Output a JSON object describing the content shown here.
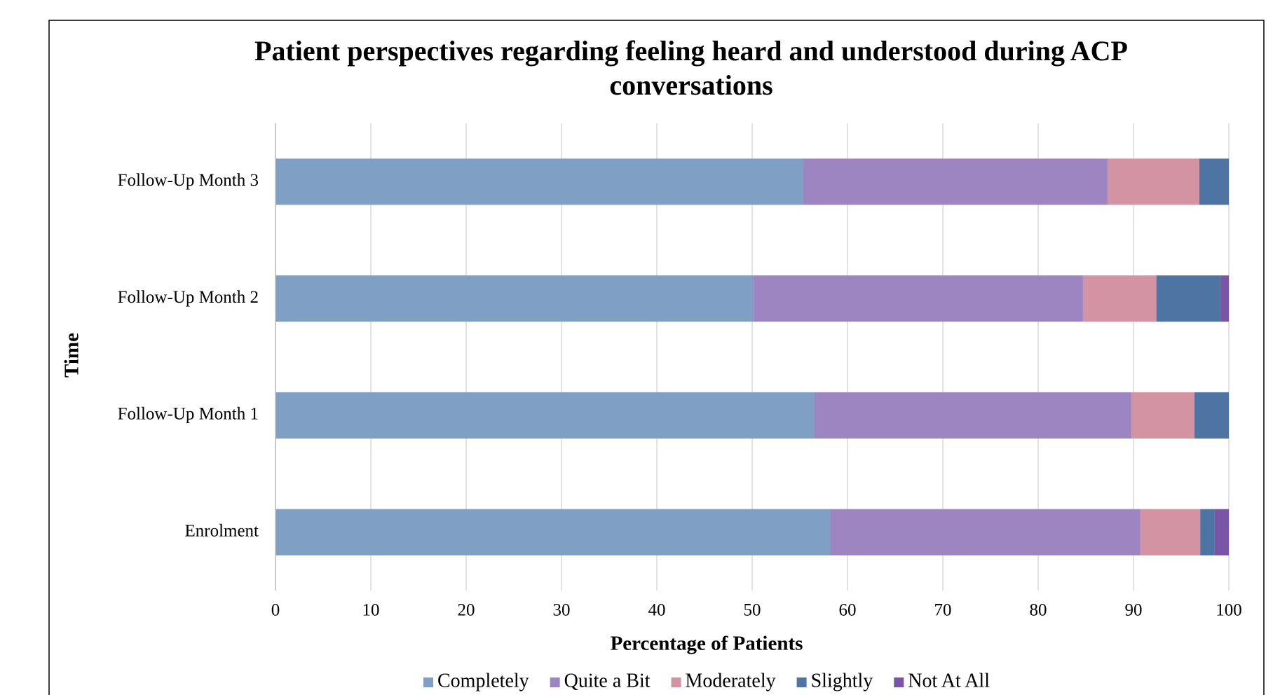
{
  "chart_data": {
    "type": "stacked_barh",
    "title": "Patient perspectives regarding feeling heard and understood during ACP conversations",
    "title_lines": [
      "Patient perspectives regarding feeling heard and understood during ACP",
      "conversations"
    ],
    "xlabel": "Percentage of Patients",
    "ylabel": "Time",
    "categories": [
      "Follow-Up Month 3",
      "Follow-Up Month 2",
      "Follow-Up Month 1",
      "Enrolment"
    ],
    "series": [
      {
        "name": "Completely",
        "color": "#7f9fc4",
        "values": [
          55.3,
          50.1,
          56.5,
          58.2
        ]
      },
      {
        "name": "Quite a Bit",
        "color": "#9d85c1",
        "values": [
          32.0,
          34.6,
          33.3,
          32.5
        ]
      },
      {
        "name": "Moderately",
        "color": "#d393a3",
        "values": [
          9.6,
          7.7,
          6.6,
          6.3
        ]
      },
      {
        "name": "Slightly",
        "color": "#4d74a3",
        "values": [
          3.1,
          6.7,
          3.6,
          1.5
        ]
      },
      {
        "name": "Not At All",
        "color": "#7a54a5",
        "values": [
          0,
          0.9,
          0,
          1.5
        ]
      }
    ],
    "xlim": [
      0,
      100
    ],
    "xticks": [
      0,
      10,
      20,
      30,
      40,
      50,
      60,
      70,
      80,
      90,
      100
    ],
    "grid": true,
    "legend": "bottom"
  }
}
